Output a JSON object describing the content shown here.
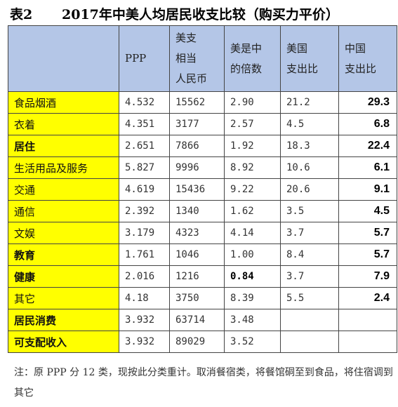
{
  "title": {
    "label": "表2",
    "text": "2017年中美人均居民收支比较（购买力平价）"
  },
  "table": {
    "headers": [
      "",
      "PPP",
      "美支\n相当\n人民币",
      "美是中\n的倍数",
      "美国\n支出比",
      "中国\n支出比"
    ],
    "rows": [
      {
        "category": "食品烟酒",
        "ppp": "4.532",
        "rmb": "15562",
        "multiple": "2.90",
        "us_share": "21.2",
        "cn_share": "29.3"
      },
      {
        "category": "衣着",
        "ppp": "4.351",
        "rmb": "3177",
        "multiple": "2.57",
        "us_share": "4.5",
        "cn_share": "6.8"
      },
      {
        "category": "居住",
        "ppp": "2.651",
        "rmb": "7866",
        "multiple": "1.92",
        "us_share": "18.3",
        "cn_share": "22.4"
      },
      {
        "category": "生活用品及服务",
        "ppp": "5.827",
        "rmb": "9996",
        "multiple": "8.92",
        "us_share": "10.6",
        "cn_share": "6.1"
      },
      {
        "category": "交通",
        "ppp": "4.619",
        "rmb": "15436",
        "multiple": "9.22",
        "us_share": "20.6",
        "cn_share": "9.1"
      },
      {
        "category": "通信",
        "ppp": "2.392",
        "rmb": "1340",
        "multiple": "1.62",
        "us_share": "3.5",
        "cn_share": "4.5"
      },
      {
        "category": "文娱",
        "ppp": "3.179",
        "rmb": "4323",
        "multiple": "4.14",
        "us_share": "3.7",
        "cn_share": "5.7"
      },
      {
        "category": "教育",
        "ppp": "1.761",
        "rmb": "1046",
        "multiple": "1.00",
        "us_share": "8.4",
        "cn_share": "5.7"
      },
      {
        "category": "健康",
        "ppp": "2.016",
        "rmb": "1216",
        "multiple": "0.84",
        "us_share": "3.7",
        "cn_share": "7.9"
      },
      {
        "category": "其它",
        "ppp": "4.18",
        "rmb": "3750",
        "multiple": "8.39",
        "us_share": "5.5",
        "cn_share": "2.4"
      },
      {
        "category": "居民消费",
        "ppp": "3.932",
        "rmb": "63714",
        "multiple": "3.48",
        "us_share": "",
        "cn_share": ""
      },
      {
        "category": "可支配收入",
        "ppp": "3.932",
        "rmb": "89029",
        "multiple": "3.52",
        "us_share": "",
        "cn_share": ""
      }
    ]
  },
  "note": "注：原 PPP 分 12 类，现按此分类重计。取消餐宿类，将餐馆硐至到食品，将住宿调到其它",
  "colors": {
    "header_bg": "#b4c6e7",
    "category_bg": "#ffff00"
  }
}
